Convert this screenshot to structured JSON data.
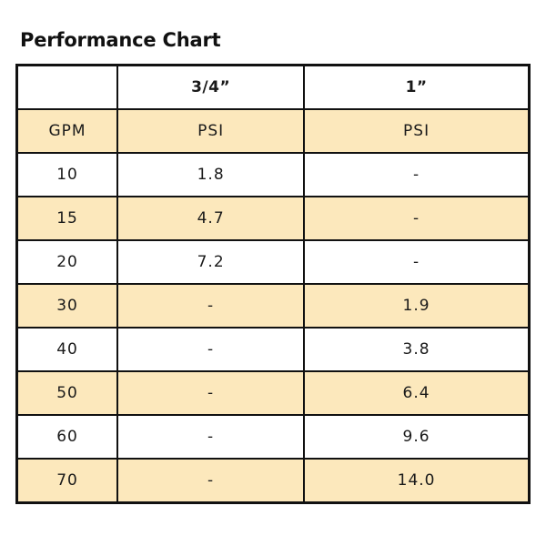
{
  "title": "Performance Chart",
  "colors": {
    "shade": "#fce8bc",
    "border": "#111111",
    "plain": "#ffffff"
  },
  "chart_data": {
    "type": "table",
    "title": "Performance Chart",
    "size_header": [
      "",
      "3/4”",
      "1”"
    ],
    "unit_header": [
      "GPM",
      "PSI",
      "PSI"
    ],
    "rows": [
      {
        "gpm": "10",
        "a": "1.8",
        "b": "-"
      },
      {
        "gpm": "15",
        "a": "4.7",
        "b": "-"
      },
      {
        "gpm": "20",
        "a": "7.2",
        "b": "-"
      },
      {
        "gpm": "30",
        "a": "-",
        "b": "1.9"
      },
      {
        "gpm": "40",
        "a": "-",
        "b": "3.8"
      },
      {
        "gpm": "50",
        "a": "-",
        "b": "6.4"
      },
      {
        "gpm": "60",
        "a": "-",
        "b": "9.6"
      },
      {
        "gpm": "70",
        "a": "-",
        "b": "14.0"
      }
    ]
  }
}
